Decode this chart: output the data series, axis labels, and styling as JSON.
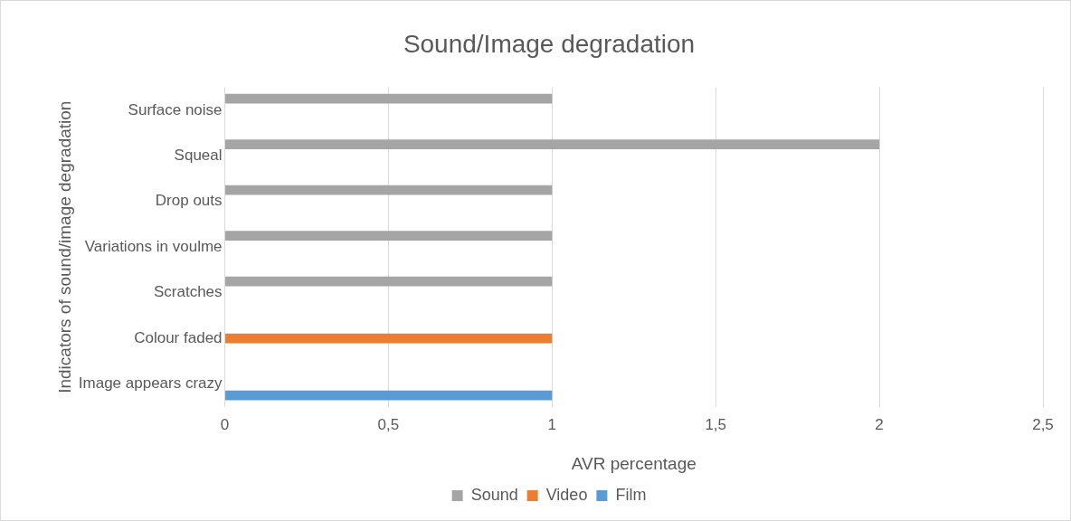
{
  "chart_data": {
    "type": "bar",
    "orientation": "horizontal",
    "title": "Sound/Image degradation",
    "xlabel": "AVR percentage",
    "ylabel": "Indicators of sound/image degradation",
    "categories": [
      "Surface noise",
      "Squeal",
      "Drop outs",
      "Variations in voulme",
      "Scratches",
      "Colour faded",
      "Image appears crazy"
    ],
    "series": [
      {
        "name": "Sound",
        "color": "#a5a5a5",
        "values": [
          1,
          2,
          1,
          1,
          1,
          null,
          null
        ]
      },
      {
        "name": "Video",
        "color": "#ed7d31",
        "values": [
          null,
          null,
          null,
          null,
          null,
          1,
          null
        ]
      },
      {
        "name": "Film",
        "color": "#5b9bd5",
        "values": [
          null,
          null,
          null,
          null,
          null,
          null,
          1
        ]
      }
    ],
    "xlim": [
      0,
      2.5
    ],
    "xticks": [
      0,
      {
        "value": 0.5,
        "label": "0,5"
      },
      1,
      {
        "value": 1.5,
        "label": "1,5"
      },
      2,
      {
        "value": 2.5,
        "label": "2,5"
      }
    ],
    "grid": "x",
    "legend": "bottom"
  }
}
